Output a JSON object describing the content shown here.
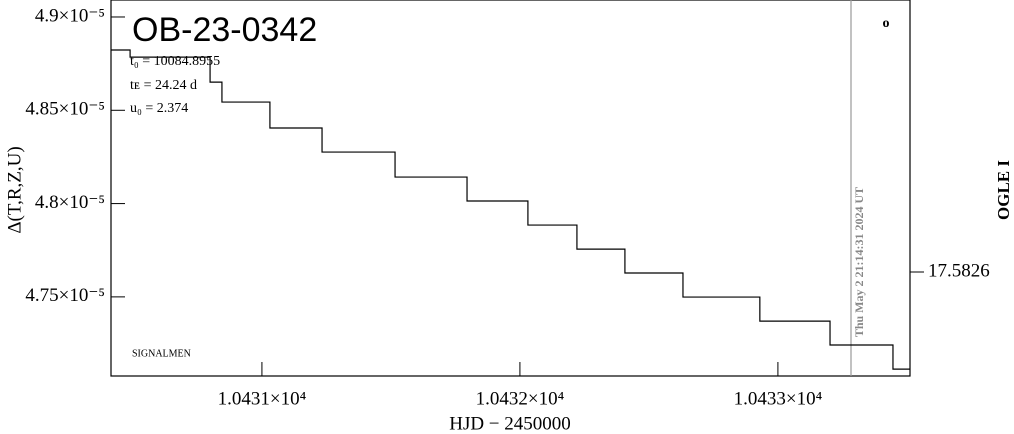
{
  "chart_data": {
    "type": "step",
    "title": "OB-23-0342",
    "info": [
      "t₀ = 10084.8955",
      "tᴇ = 24.24 d",
      "u₀ = 2.374"
    ],
    "credit": "SIGNALMEN",
    "xlabel": "HJD − 2450000",
    "ylabel": "Δ(T,R,Z,U)",
    "y2label": "OGLE I",
    "timestamp": "Thu May  2 21:14:31 2024 UT",
    "corner_mark": "o",
    "x": [
      10430.415,
      10430.489,
      10430.799,
      10430.845,
      10431.031,
      10431.233,
      10431.516,
      10431.795,
      10432.031,
      10432.221,
      10432.407,
      10432.632,
      10432.93,
      10433.202,
      10433.446,
      10433.512
    ],
    "values": [
      4.8823e-05,
      4.8785e-05,
      4.8651e-05,
      4.8544e-05,
      4.8405e-05,
      4.8276e-05,
      4.8142e-05,
      4.8014e-05,
      4.7885e-05,
      4.7756e-05,
      4.7628e-05,
      4.7499e-05,
      4.737e-05,
      4.7242e-05,
      4.7113e-05,
      4.7113e-05
    ],
    "color": "#000000",
    "xlim": [
      10430.415,
      10433.512
    ],
    "xticks": [
      {
        "value": 10431,
        "label": "1.0431×10⁴"
      },
      {
        "value": 10432,
        "label": "1.0432×10⁴"
      },
      {
        "value": 10433,
        "label": "1.0433×10⁴"
      }
    ],
    "ylim": [
      4.7076e-05,
      4.9091e-05
    ],
    "yticks": [
      {
        "value": 4.9e-05,
        "label": "4.9×10⁻⁵"
      },
      {
        "value": 4.85e-05,
        "label": "4.85×10⁻⁵"
      },
      {
        "value": 4.8e-05,
        "label": "4.8×10⁻⁵"
      },
      {
        "value": 4.75e-05,
        "label": "4.75×10⁻⁵"
      }
    ],
    "y2lim": [
      17.58,
      17.5894
    ],
    "y2ticks": [
      17.5826
    ]
  }
}
